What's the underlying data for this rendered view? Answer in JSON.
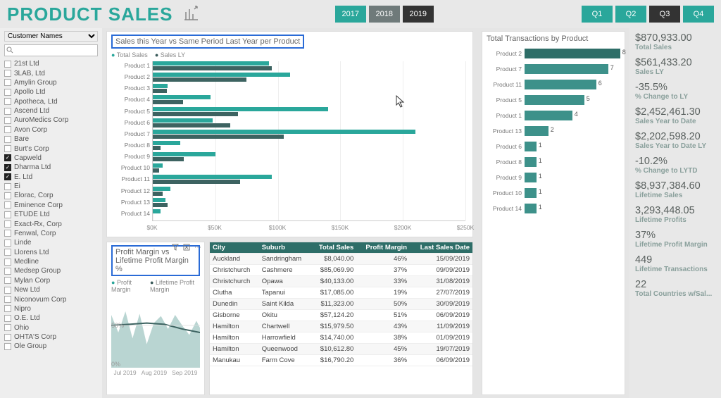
{
  "colors": {
    "teal": "#2aa79b",
    "darkTeal": "#3d6361",
    "accentBlue": "#2a6bd6",
    "hdrTable": "#2e6e68",
    "barMid": "#3d918a"
  },
  "header": {
    "title": "PRODUCT SALES",
    "years": [
      {
        "label": "2017",
        "style": "teal"
      },
      {
        "label": "2018",
        "style": "gray"
      },
      {
        "label": "2019",
        "style": "dark"
      }
    ],
    "quarters": [
      {
        "label": "Q1",
        "style": "teal"
      },
      {
        "label": "Q2",
        "style": "teal"
      },
      {
        "label": "Q3",
        "style": "dark"
      },
      {
        "label": "Q4",
        "style": "teal"
      }
    ]
  },
  "customers": {
    "dropdown_label": "Customer Names",
    "search_placeholder": "",
    "items": [
      {
        "name": "21st Ltd",
        "checked": false
      },
      {
        "name": "3LAB, Ltd",
        "checked": false
      },
      {
        "name": "Amylin Group",
        "checked": false
      },
      {
        "name": "Apollo Ltd",
        "checked": false
      },
      {
        "name": "Apotheca, Ltd",
        "checked": false
      },
      {
        "name": "Ascend Ltd",
        "checked": false
      },
      {
        "name": "AuroMedics Corp",
        "checked": false
      },
      {
        "name": "Avon Corp",
        "checked": false
      },
      {
        "name": "Bare",
        "checked": false
      },
      {
        "name": "Burt's Corp",
        "checked": false
      },
      {
        "name": "Capweld",
        "checked": true
      },
      {
        "name": "Dharma Ltd",
        "checked": true
      },
      {
        "name": "E. Ltd",
        "checked": true
      },
      {
        "name": "Ei",
        "checked": false
      },
      {
        "name": "Elorac, Corp",
        "checked": false
      },
      {
        "name": "Eminence Corp",
        "checked": false
      },
      {
        "name": "ETUDE Ltd",
        "checked": false
      },
      {
        "name": "Exact-Rx, Corp",
        "checked": false
      },
      {
        "name": "Fenwal, Corp",
        "checked": false
      },
      {
        "name": "Linde",
        "checked": false
      },
      {
        "name": "Llorens Ltd",
        "checked": false
      },
      {
        "name": "Medline",
        "checked": false
      },
      {
        "name": "Medsep Group",
        "checked": false
      },
      {
        "name": "Mylan Corp",
        "checked": false
      },
      {
        "name": "New Ltd",
        "checked": false
      },
      {
        "name": "Niconovum Corp",
        "checked": false
      },
      {
        "name": "Nipro",
        "checked": false
      },
      {
        "name": "O.E. Ltd",
        "checked": false
      },
      {
        "name": "Ohio",
        "checked": false
      },
      {
        "name": "OHTA'S Corp",
        "checked": false
      },
      {
        "name": "Ole Group",
        "checked": false
      }
    ]
  },
  "salesChart": {
    "title": "Sales this Year vs Same Period Last Year per Product",
    "legend": {
      "a": "Total Sales",
      "b": "Sales LY"
    },
    "type": "bar-horizontal-grouped",
    "x_max": 250000,
    "x_ticks": [
      "$0K",
      "$50K",
      "$100K",
      "$150K",
      "$200K",
      "$250K"
    ],
    "rows": [
      {
        "label": "Product 1",
        "a": 93000,
        "b": 95000
      },
      {
        "label": "Product 2",
        "a": 110000,
        "b": 75000
      },
      {
        "label": "Product 3",
        "a": 12000,
        "b": 11000
      },
      {
        "label": "Product 4",
        "a": 46000,
        "b": 24000
      },
      {
        "label": "Product 5",
        "a": 140000,
        "b": 68000
      },
      {
        "label": "Product 6",
        "a": 48000,
        "b": 62000
      },
      {
        "label": "Product 7",
        "a": 210000,
        "b": 105000
      },
      {
        "label": "Product 8",
        "a": 22000,
        "b": 6000
      },
      {
        "label": "Product 9",
        "a": 50000,
        "b": 25000
      },
      {
        "label": "Product 10",
        "a": 8000,
        "b": 5000
      },
      {
        "label": "Product 11",
        "a": 95000,
        "b": 70000
      },
      {
        "label": "Product 12",
        "a": 14000,
        "b": 8000
      },
      {
        "label": "Product 13",
        "a": 10000,
        "b": 12000
      },
      {
        "label": "Product 14",
        "a": 6000,
        "b": 0
      }
    ]
  },
  "transChart": {
    "title": "Total Transactions by Product",
    "type": "bar-horizontal",
    "max": 8,
    "rows": [
      {
        "label": "Product 2",
        "v": 8,
        "hl": true
      },
      {
        "label": "Product 7",
        "v": 7
      },
      {
        "label": "Product 11",
        "v": 6
      },
      {
        "label": "Product 5",
        "v": 5
      },
      {
        "label": "Product 1",
        "v": 4
      },
      {
        "label": "Product 13",
        "v": 2
      },
      {
        "label": "Product 6",
        "v": 1
      },
      {
        "label": "Product 8",
        "v": 1
      },
      {
        "label": "Product 9",
        "v": 1
      },
      {
        "label": "Product 10",
        "v": 1
      },
      {
        "label": "Product 14",
        "v": 1
      }
    ]
  },
  "pmChart": {
    "title": "Profit Margin vs Lifetime Profit Margin %",
    "legend": {
      "a": "Profit Margin",
      "b": "Lifetime Profit Margin"
    },
    "y_ticks": [
      "50%",
      "0%"
    ],
    "x_ticks": [
      "Jul 2019",
      "Aug 2019",
      "Sep 2019"
    ],
    "area_hex": "#7fb3ad",
    "line_hex": "#3d6361",
    "area_points": [
      0,
      45,
      8,
      30,
      16,
      48,
      24,
      25,
      32,
      46,
      40,
      20,
      48,
      38,
      56,
      44,
      64,
      33,
      72,
      45,
      80,
      36,
      88,
      28,
      96,
      40,
      100,
      34
    ],
    "line_points": [
      0,
      36,
      20,
      37,
      40,
      38,
      60,
      37,
      80,
      33,
      100,
      30
    ]
  },
  "salesTable": {
    "columns": [
      "City",
      "Suburb",
      "Total Sales",
      "Profit Margin",
      "Last Sales Date"
    ],
    "rows": [
      [
        "Auckland",
        "Sandringham",
        "$8,040.00",
        "46%",
        "15/09/2019"
      ],
      [
        "Christchurch",
        "Cashmere",
        "$85,069.90",
        "37%",
        "09/09/2019"
      ],
      [
        "Christchurch",
        "Opawa",
        "$40,133.00",
        "33%",
        "31/08/2019"
      ],
      [
        "Clutha",
        "Tapanui",
        "$17,085.00",
        "19%",
        "27/07/2019"
      ],
      [
        "Dunedin",
        "Saint Kilda",
        "$11,323.00",
        "50%",
        "30/09/2019"
      ],
      [
        "Gisborne",
        "Okitu",
        "$57,124.20",
        "51%",
        "06/09/2019"
      ],
      [
        "Hamilton",
        "Chartwell",
        "$15,979.50",
        "43%",
        "11/09/2019"
      ],
      [
        "Hamilton",
        "Harrowfield",
        "$14,740.00",
        "38%",
        "01/09/2019"
      ],
      [
        "Hamilton",
        "Queenwood",
        "$10,612.80",
        "45%",
        "19/07/2019"
      ],
      [
        "Manukau",
        "Farm Cove",
        "$16,790.20",
        "36%",
        "06/09/2019"
      ]
    ]
  },
  "kpis": [
    {
      "v": "$870,933.00",
      "l": "Total Sales"
    },
    {
      "v": "$561,433.20",
      "l": "Sales LY"
    },
    {
      "v": "-35.5%",
      "l": "% Change to LY"
    },
    {
      "v": "$2,452,461.30",
      "l": "Sales Year to Date"
    },
    {
      "v": "$2,202,598.20",
      "l": "Sales Year to Date LY"
    },
    {
      "v": "-10.2%",
      "l": "% Change to LYTD"
    },
    {
      "v": "$8,937,384.60",
      "l": "Lifetime Sales"
    },
    {
      "v": "3,293,448.05",
      "l": "Lifetime Profits"
    },
    {
      "v": "37%",
      "l": "Lifetime Profit Margin"
    },
    {
      "v": "449",
      "l": "Lifetime Transactions"
    },
    {
      "v": "22",
      "l": "Total Countries w/Sal..."
    }
  ]
}
